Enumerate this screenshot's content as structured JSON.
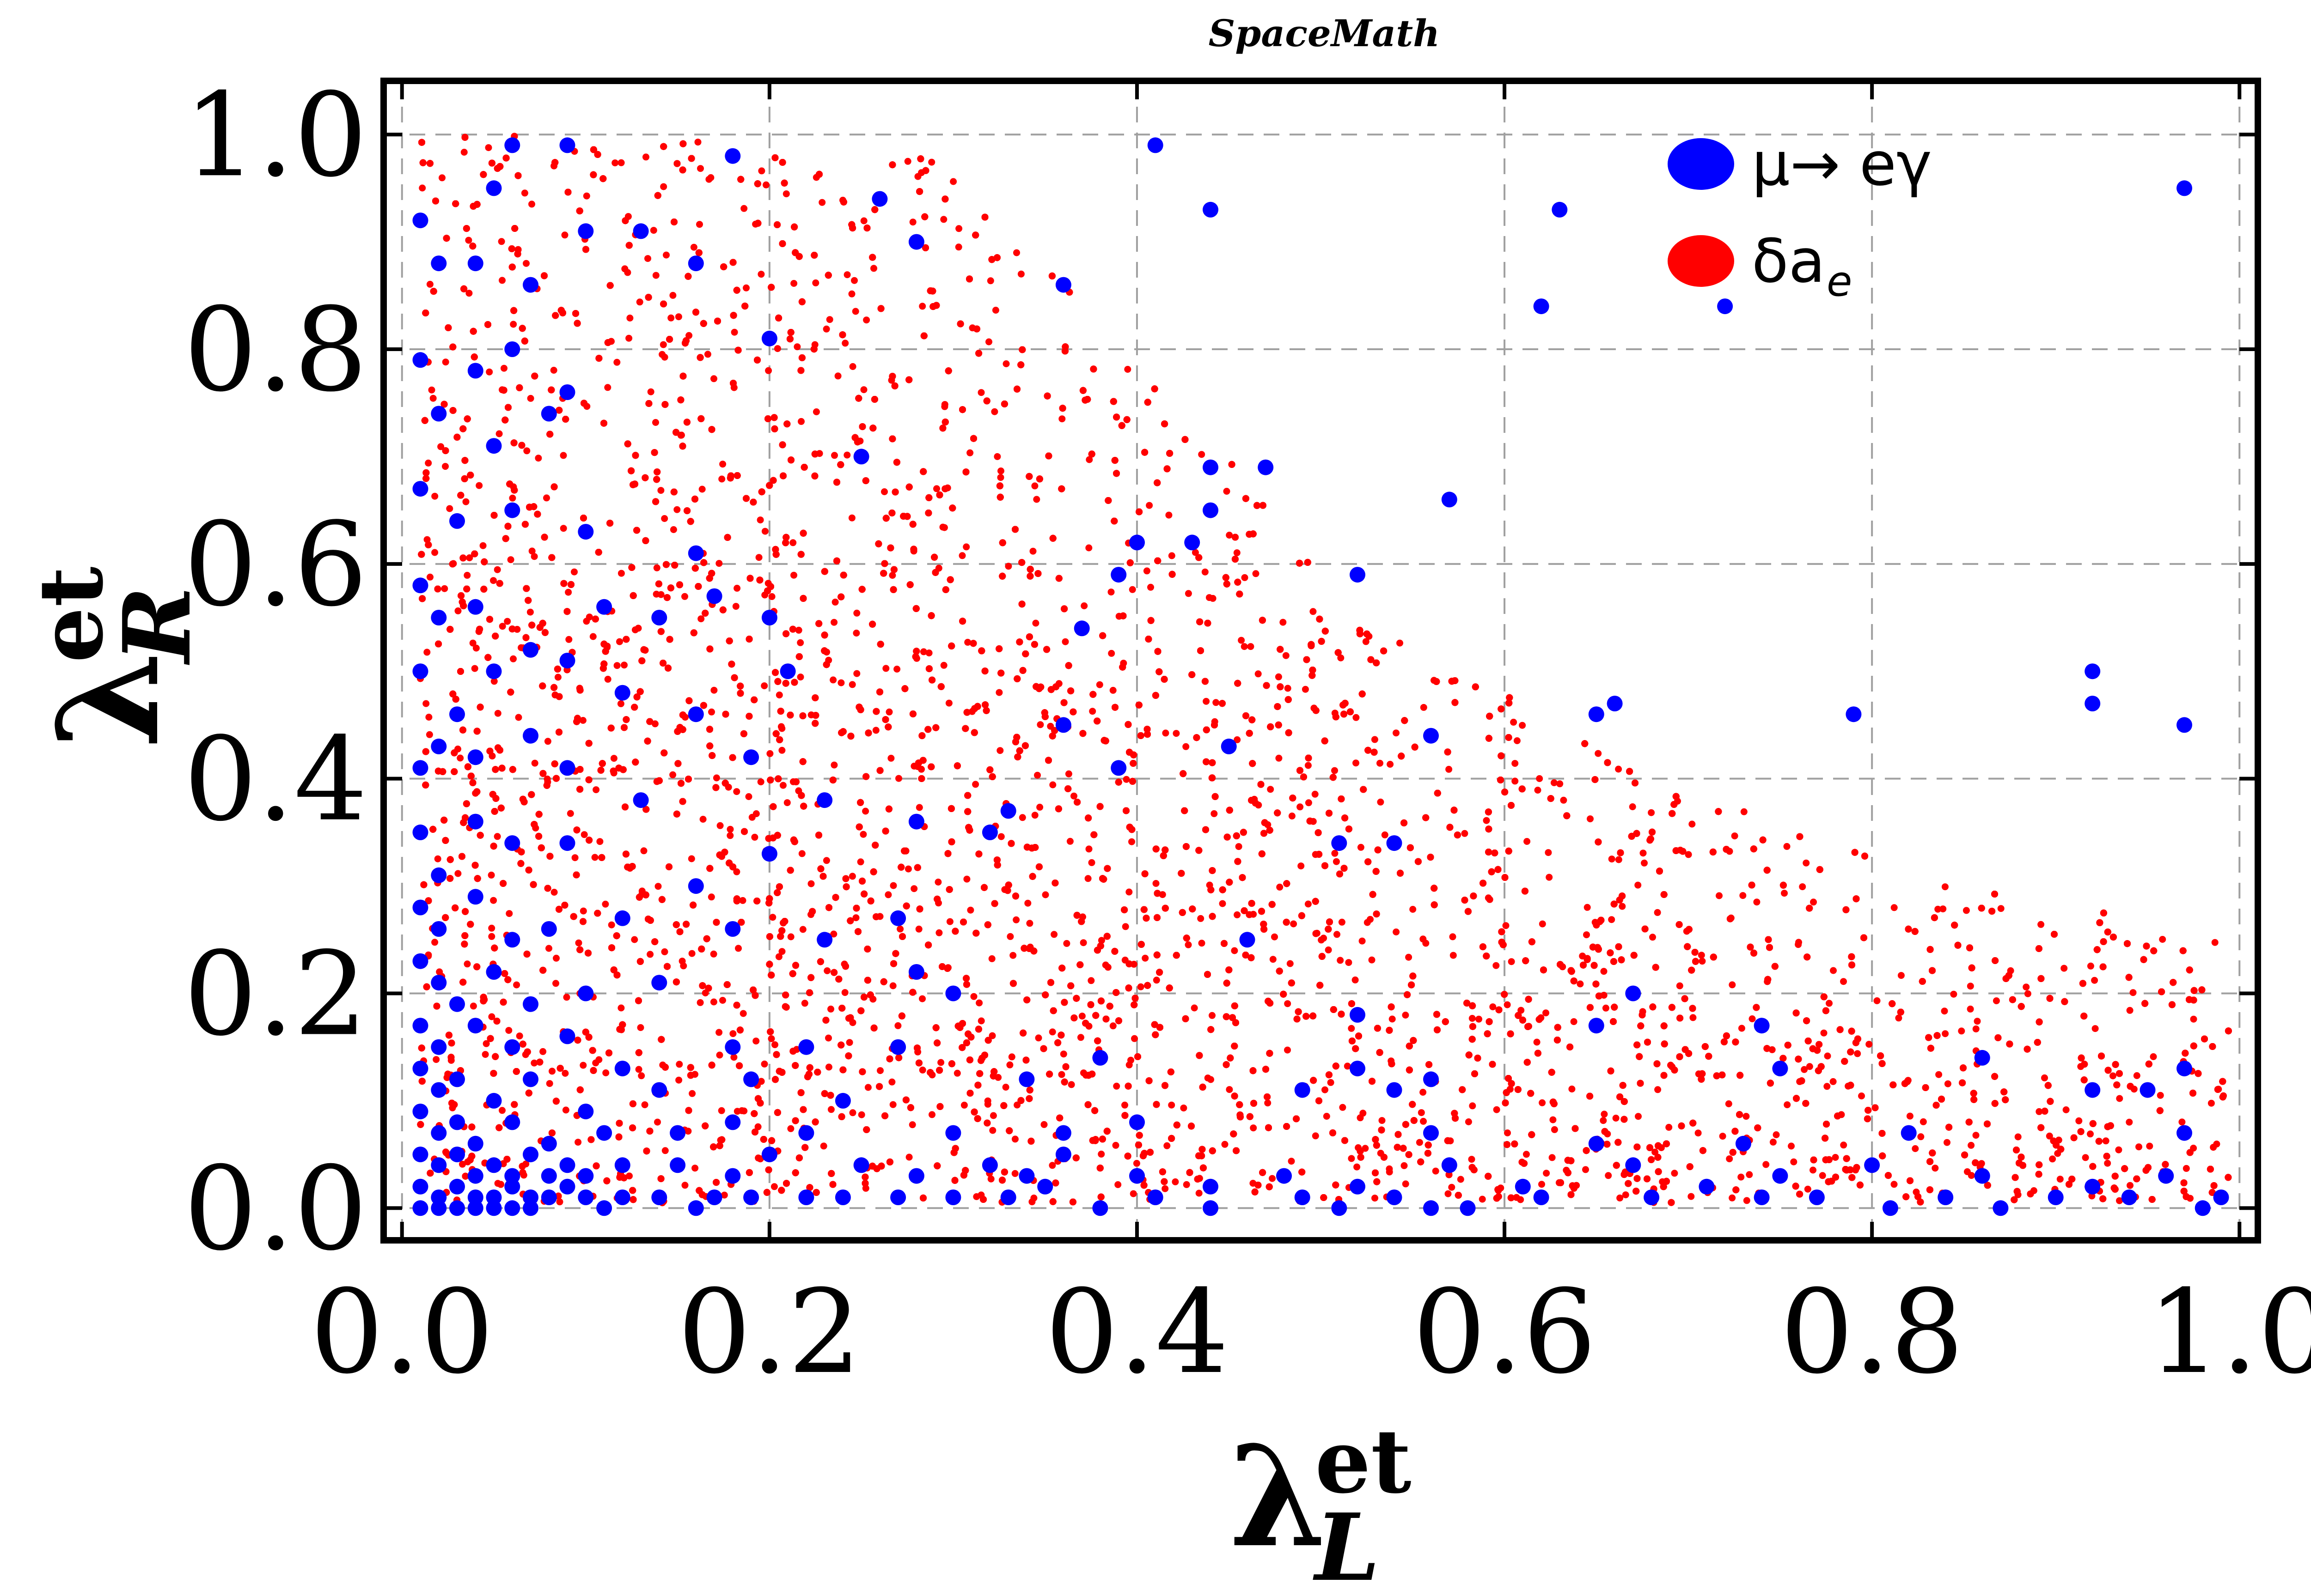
{
  "chart_data": {
    "type": "scatter",
    "title": "SpaceMath",
    "xlabel": {
      "symbol": "λ",
      "sup": "et",
      "sub": "L"
    },
    "ylabel": {
      "symbol": "λ",
      "sup": "et",
      "sub": "R"
    },
    "xlim": [
      -0.01,
      1.01
    ],
    "ylim": [
      -0.03,
      1.05
    ],
    "xticks": [
      0.0,
      0.2,
      0.4,
      0.6,
      0.8,
      1.0
    ],
    "yticks": [
      0.0,
      0.2,
      0.4,
      0.6,
      0.8,
      1.0
    ],
    "xtick_labels": [
      "0.0",
      "0.2",
      "0.4",
      "0.6",
      "0.8",
      "1.0"
    ],
    "ytick_labels": [
      "0.0",
      "0.2",
      "0.4",
      "0.6",
      "0.8",
      "1.0"
    ],
    "grid": true,
    "legend_position": "top-right",
    "series": [
      {
        "name": "μ→ eγ",
        "legend_text": "μ→ eγ",
        "color": "#0000ff",
        "marker": "large-dot",
        "points": [
          [
            0.06,
            0.99
          ],
          [
            0.09,
            0.99
          ],
          [
            0.18,
            0.98
          ],
          [
            0.41,
            0.99
          ],
          [
            0.44,
            0.93
          ],
          [
            0.63,
            0.93
          ],
          [
            0.97,
            0.95
          ],
          [
            0.36,
            0.86
          ],
          [
            0.62,
            0.84
          ],
          [
            0.72,
            0.84
          ],
          [
            0.01,
            0.92
          ],
          [
            0.02,
            0.88
          ],
          [
            0.04,
            0.88
          ],
          [
            0.05,
            0.95
          ],
          [
            0.07,
            0.86
          ],
          [
            0.1,
            0.91
          ],
          [
            0.13,
            0.91
          ],
          [
            0.28,
            0.9
          ],
          [
            0.16,
            0.88
          ],
          [
            0.2,
            0.81
          ],
          [
            0.26,
            0.94
          ],
          [
            0.01,
            0.79
          ],
          [
            0.02,
            0.74
          ],
          [
            0.04,
            0.78
          ],
          [
            0.06,
            0.8
          ],
          [
            0.09,
            0.76
          ],
          [
            0.08,
            0.74
          ],
          [
            0.05,
            0.71
          ],
          [
            0.44,
            0.69
          ],
          [
            0.47,
            0.69
          ],
          [
            0.57,
            0.66
          ],
          [
            0.25,
            0.7
          ],
          [
            0.01,
            0.67
          ],
          [
            0.03,
            0.64
          ],
          [
            0.06,
            0.65
          ],
          [
            0.1,
            0.63
          ],
          [
            0.4,
            0.62
          ],
          [
            0.43,
            0.62
          ],
          [
            0.44,
            0.65
          ],
          [
            0.52,
            0.59
          ],
          [
            0.39,
            0.59
          ],
          [
            0.16,
            0.61
          ],
          [
            0.01,
            0.58
          ],
          [
            0.02,
            0.55
          ],
          [
            0.04,
            0.56
          ],
          [
            0.07,
            0.52
          ],
          [
            0.11,
            0.56
          ],
          [
            0.14,
            0.55
          ],
          [
            0.17,
            0.57
          ],
          [
            0.2,
            0.55
          ],
          [
            0.37,
            0.54
          ],
          [
            0.01,
            0.5
          ],
          [
            0.03,
            0.46
          ],
          [
            0.05,
            0.5
          ],
          [
            0.09,
            0.51
          ],
          [
            0.12,
            0.48
          ],
          [
            0.16,
            0.46
          ],
          [
            0.21,
            0.5
          ],
          [
            0.92,
            0.5
          ],
          [
            0.92,
            0.47
          ],
          [
            0.97,
            0.45
          ],
          [
            0.66,
            0.47
          ],
          [
            0.65,
            0.46
          ],
          [
            0.79,
            0.46
          ],
          [
            0.56,
            0.44
          ],
          [
            0.45,
            0.43
          ],
          [
            0.36,
            0.45
          ],
          [
            0.01,
            0.41
          ],
          [
            0.02,
            0.43
          ],
          [
            0.04,
            0.42
          ],
          [
            0.07,
            0.44
          ],
          [
            0.09,
            0.41
          ],
          [
            0.13,
            0.38
          ],
          [
            0.19,
            0.42
          ],
          [
            0.23,
            0.38
          ],
          [
            0.33,
            0.37
          ],
          [
            0.39,
            0.41
          ],
          [
            0.01,
            0.35
          ],
          [
            0.02,
            0.31
          ],
          [
            0.04,
            0.36
          ],
          [
            0.06,
            0.34
          ],
          [
            0.09,
            0.34
          ],
          [
            0.16,
            0.3
          ],
          [
            0.2,
            0.33
          ],
          [
            0.28,
            0.36
          ],
          [
            0.32,
            0.35
          ],
          [
            0.51,
            0.34
          ],
          [
            0.54,
            0.34
          ],
          [
            0.01,
            0.28
          ],
          [
            0.02,
            0.26
          ],
          [
            0.04,
            0.29
          ],
          [
            0.06,
            0.25
          ],
          [
            0.08,
            0.26
          ],
          [
            0.12,
            0.27
          ],
          [
            0.18,
            0.26
          ],
          [
            0.23,
            0.25
          ],
          [
            0.27,
            0.27
          ],
          [
            0.46,
            0.25
          ],
          [
            0.01,
            0.23
          ],
          [
            0.02,
            0.21
          ],
          [
            0.03,
            0.19
          ],
          [
            0.05,
            0.22
          ],
          [
            0.07,
            0.19
          ],
          [
            0.1,
            0.2
          ],
          [
            0.14,
            0.21
          ],
          [
            0.28,
            0.22
          ],
          [
            0.3,
            0.2
          ],
          [
            0.67,
            0.2
          ],
          [
            0.52,
            0.18
          ],
          [
            0.65,
            0.17
          ],
          [
            0.74,
            0.17
          ],
          [
            0.01,
            0.17
          ],
          [
            0.02,
            0.15
          ],
          [
            0.04,
            0.17
          ],
          [
            0.06,
            0.15
          ],
          [
            0.09,
            0.16
          ],
          [
            0.12,
            0.13
          ],
          [
            0.18,
            0.15
          ],
          [
            0.22,
            0.15
          ],
          [
            0.27,
            0.15
          ],
          [
            0.52,
            0.13
          ],
          [
            0.56,
            0.12
          ],
          [
            0.86,
            0.14
          ],
          [
            0.97,
            0.13
          ],
          [
            0.01,
            0.13
          ],
          [
            0.02,
            0.11
          ],
          [
            0.03,
            0.12
          ],
          [
            0.05,
            0.1
          ],
          [
            0.07,
            0.12
          ],
          [
            0.1,
            0.09
          ],
          [
            0.14,
            0.11
          ],
          [
            0.19,
            0.12
          ],
          [
            0.24,
            0.1
          ],
          [
            0.34,
            0.12
          ],
          [
            0.38,
            0.14
          ],
          [
            0.49,
            0.11
          ],
          [
            0.54,
            0.11
          ],
          [
            0.75,
            0.13
          ],
          [
            0.92,
            0.11
          ],
          [
            0.95,
            0.11
          ],
          [
            0.01,
            0.09
          ],
          [
            0.02,
            0.07
          ],
          [
            0.03,
            0.08
          ],
          [
            0.04,
            0.06
          ],
          [
            0.06,
            0.08
          ],
          [
            0.08,
            0.06
          ],
          [
            0.11,
            0.07
          ],
          [
            0.15,
            0.07
          ],
          [
            0.18,
            0.08
          ],
          [
            0.22,
            0.07
          ],
          [
            0.3,
            0.07
          ],
          [
            0.36,
            0.07
          ],
          [
            0.4,
            0.08
          ],
          [
            0.56,
            0.07
          ],
          [
            0.65,
            0.06
          ],
          [
            0.73,
            0.06
          ],
          [
            0.82,
            0.07
          ],
          [
            0.97,
            0.07
          ],
          [
            0.01,
            0.05
          ],
          [
            0.02,
            0.04
          ],
          [
            0.03,
            0.05
          ],
          [
            0.04,
            0.03
          ],
          [
            0.05,
            0.04
          ],
          [
            0.06,
            0.03
          ],
          [
            0.07,
            0.05
          ],
          [
            0.08,
            0.03
          ],
          [
            0.09,
            0.04
          ],
          [
            0.1,
            0.03
          ],
          [
            0.12,
            0.04
          ],
          [
            0.15,
            0.04
          ],
          [
            0.18,
            0.03
          ],
          [
            0.2,
            0.05
          ],
          [
            0.25,
            0.04
          ],
          [
            0.28,
            0.03
          ],
          [
            0.32,
            0.04
          ],
          [
            0.34,
            0.03
          ],
          [
            0.36,
            0.05
          ],
          [
            0.4,
            0.03
          ],
          [
            0.44,
            0.02
          ],
          [
            0.48,
            0.03
          ],
          [
            0.52,
            0.02
          ],
          [
            0.57,
            0.04
          ],
          [
            0.61,
            0.02
          ],
          [
            0.67,
            0.04
          ],
          [
            0.75,
            0.03
          ],
          [
            0.8,
            0.04
          ],
          [
            0.86,
            0.03
          ],
          [
            0.92,
            0.02
          ],
          [
            0.96,
            0.03
          ],
          [
            0.01,
            0.02
          ],
          [
            0.02,
            0.01
          ],
          [
            0.03,
            0.02
          ],
          [
            0.04,
            0.01
          ],
          [
            0.05,
            0.01
          ],
          [
            0.06,
            0.02
          ],
          [
            0.07,
            0.01
          ],
          [
            0.08,
            0.01
          ],
          [
            0.09,
            0.02
          ],
          [
            0.1,
            0.01
          ],
          [
            0.12,
            0.01
          ],
          [
            0.14,
            0.01
          ],
          [
            0.17,
            0.01
          ],
          [
            0.19,
            0.01
          ],
          [
            0.22,
            0.01
          ],
          [
            0.24,
            0.01
          ],
          [
            0.27,
            0.01
          ],
          [
            0.3,
            0.01
          ],
          [
            0.33,
            0.01
          ],
          [
            0.35,
            0.02
          ],
          [
            0.38,
            0.0
          ],
          [
            0.41,
            0.01
          ],
          [
            0.44,
            0.0
          ],
          [
            0.49,
            0.01
          ],
          [
            0.51,
            0.0
          ],
          [
            0.54,
            0.01
          ],
          [
            0.56,
            0.0
          ],
          [
            0.58,
            0.0
          ],
          [
            0.62,
            0.01
          ],
          [
            0.68,
            0.01
          ],
          [
            0.71,
            0.02
          ],
          [
            0.74,
            0.01
          ],
          [
            0.77,
            0.01
          ],
          [
            0.81,
            0.0
          ],
          [
            0.84,
            0.01
          ],
          [
            0.87,
            0.0
          ],
          [
            0.9,
            0.01
          ],
          [
            0.94,
            0.01
          ],
          [
            0.98,
            0.0
          ],
          [
            0.99,
            0.01
          ],
          [
            0.01,
            0.0
          ],
          [
            0.02,
            0.0
          ],
          [
            0.03,
            0.0
          ],
          [
            0.04,
            0.0
          ],
          [
            0.05,
            0.0
          ],
          [
            0.06,
            0.0
          ],
          [
            0.07,
            0.0
          ],
          [
            0.11,
            0.0
          ],
          [
            0.16,
            0.0
          ]
        ]
      },
      {
        "name": "δa",
        "legend_text": "δa",
        "legend_sub": "e",
        "color": "#ff0000",
        "marker": "small-dot",
        "density_envelope": [
          [
            0.0,
            1.0
          ],
          [
            0.1,
            1.0
          ],
          [
            0.2,
            0.99
          ],
          [
            0.3,
            0.98
          ],
          [
            0.35,
            0.88
          ],
          [
            0.4,
            0.78
          ],
          [
            0.45,
            0.7
          ],
          [
            0.5,
            0.6
          ],
          [
            0.55,
            0.52
          ],
          [
            0.6,
            0.48
          ],
          [
            0.65,
            0.43
          ],
          [
            0.7,
            0.39
          ],
          [
            0.75,
            0.36
          ],
          [
            0.8,
            0.33
          ],
          [
            0.85,
            0.31
          ],
          [
            0.9,
            0.29
          ],
          [
            0.95,
            0.27
          ],
          [
            1.0,
            0.25
          ]
        ]
      }
    ]
  }
}
